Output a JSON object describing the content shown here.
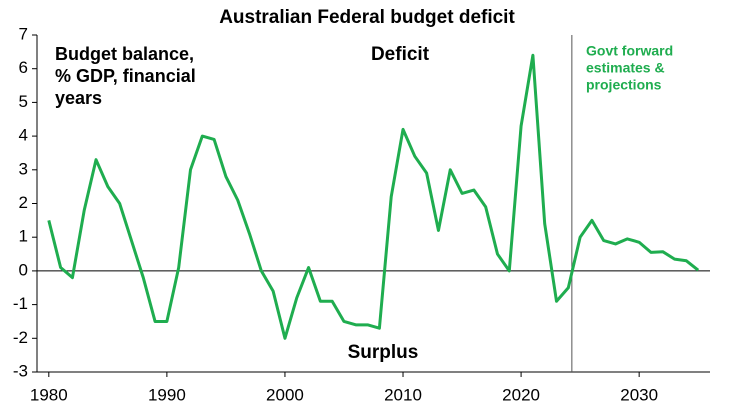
{
  "chart_data": {
    "type": "line",
    "title": "Australian Federal budget deficit",
    "label_lines": [
      "Budget balance,",
      "% GDP, financial",
      "years"
    ],
    "deficit_label": "Deficit",
    "surplus_label": "Surplus",
    "forecast_note_lines": [
      "Govt forward",
      "estimates &",
      "projections"
    ],
    "forecast_line_x": 2024.3,
    "x": [
      1980,
      1981,
      1982,
      1983,
      1984,
      1985,
      1986,
      1987,
      1988,
      1989,
      1990,
      1991,
      1992,
      1993,
      1994,
      1995,
      1996,
      1997,
      1998,
      1999,
      2000,
      2001,
      2002,
      2003,
      2004,
      2005,
      2006,
      2007,
      2008,
      2009,
      2010,
      2011,
      2012,
      2013,
      2014,
      2015,
      2016,
      2017,
      2018,
      2019,
      2020,
      2021,
      2022,
      2023,
      2024,
      2025,
      2026,
      2027,
      2028,
      2029,
      2030,
      2031,
      2032,
      2033,
      2034,
      2035
    ],
    "series": [
      {
        "name": "Budget balance",
        "color": "#1fad4f",
        "values": [
          1.5,
          0.1,
          -0.2,
          1.8,
          3.3,
          2.5,
          2.0,
          0.9,
          -0.2,
          -1.5,
          -1.5,
          0.1,
          3.0,
          4.0,
          3.9,
          2.8,
          2.1,
          1.1,
          0.0,
          -0.6,
          -2.0,
          -0.8,
          0.1,
          -0.9,
          -0.9,
          -1.5,
          -1.6,
          -1.6,
          -1.7,
          2.2,
          4.2,
          3.4,
          2.9,
          1.2,
          3.0,
          2.3,
          2.4,
          1.9,
          0.5,
          0.0,
          4.3,
          6.4,
          1.4,
          -0.9,
          -0.5,
          1.0,
          1.5,
          0.9,
          0.8,
          0.95,
          0.85,
          0.55,
          0.57,
          0.35,
          0.3,
          0.02
        ]
      }
    ],
    "xlim": [
      1979,
      2036
    ],
    "xticks": [
      1980,
      1990,
      2000,
      2010,
      2020,
      2030
    ],
    "ylim": [
      -3,
      7
    ],
    "yticks": [
      -3,
      -2,
      -1,
      0,
      1,
      2,
      3,
      4,
      5,
      6,
      7
    ]
  }
}
